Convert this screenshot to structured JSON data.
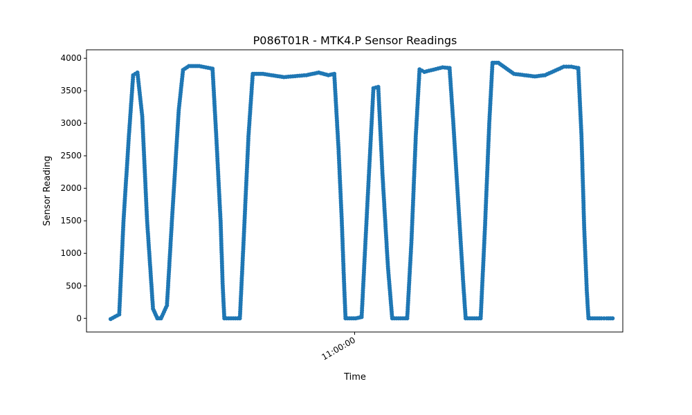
{
  "chart_data": {
    "type": "scatter",
    "title": "P086T01R - MTK4.P Sensor Readings",
    "xlabel": "Time",
    "ylabel": "Sensor Reading",
    "x_ticks": [
      {
        "x": 0.5,
        "label": "11:00:00"
      }
    ],
    "y_ticks": [
      0,
      500,
      1000,
      1500,
      2000,
      2500,
      3000,
      3500,
      4000
    ],
    "xlim": [
      0,
      1
    ],
    "ylim": [
      -210,
      4130
    ],
    "marker_color": "#1f77b4",
    "grid": false,
    "legend": "none",
    "series": [
      {
        "points": [
          [
            0.045,
            -10
          ],
          [
            0.061,
            60
          ],
          [
            0.069,
            1500
          ],
          [
            0.079,
            2800
          ],
          [
            0.087,
            3740
          ],
          [
            0.095,
            3780
          ],
          [
            0.104,
            3100
          ],
          [
            0.113,
            1500
          ],
          [
            0.124,
            150
          ],
          [
            0.132,
            0
          ],
          [
            0.139,
            0
          ],
          [
            0.15,
            200
          ],
          [
            0.16,
            1600
          ],
          [
            0.172,
            3200
          ],
          [
            0.18,
            3820
          ],
          [
            0.191,
            3880
          ],
          [
            0.21,
            3880
          ],
          [
            0.235,
            3840
          ],
          [
            0.242,
            2800
          ],
          [
            0.25,
            1500
          ],
          [
            0.254,
            500
          ],
          [
            0.257,
            0
          ],
          [
            0.286,
            0
          ],
          [
            0.293,
            1200
          ],
          [
            0.302,
            2800
          ],
          [
            0.31,
            3760
          ],
          [
            0.329,
            3760
          ],
          [
            0.368,
            3710
          ],
          [
            0.41,
            3740
          ],
          [
            0.433,
            3780
          ],
          [
            0.451,
            3740
          ],
          [
            0.462,
            3760
          ],
          [
            0.47,
            2600
          ],
          [
            0.476,
            1500
          ],
          [
            0.48,
            600
          ],
          [
            0.483,
            0
          ],
          [
            0.502,
            0
          ],
          [
            0.513,
            20
          ],
          [
            0.524,
            1800
          ],
          [
            0.535,
            3540
          ],
          [
            0.544,
            3560
          ],
          [
            0.552,
            2200
          ],
          [
            0.562,
            800
          ],
          [
            0.57,
            0
          ],
          [
            0.598,
            0
          ],
          [
            0.606,
            1200
          ],
          [
            0.614,
            2800
          ],
          [
            0.621,
            3830
          ],
          [
            0.63,
            3790
          ],
          [
            0.664,
            3860
          ],
          [
            0.677,
            3850
          ],
          [
            0.684,
            3000
          ],
          [
            0.693,
            1800
          ],
          [
            0.702,
            600
          ],
          [
            0.707,
            0
          ],
          [
            0.735,
            0
          ],
          [
            0.743,
            1400
          ],
          [
            0.751,
            3000
          ],
          [
            0.757,
            3930
          ],
          [
            0.768,
            3930
          ],
          [
            0.797,
            3760
          ],
          [
            0.836,
            3720
          ],
          [
            0.855,
            3740
          ],
          [
            0.89,
            3870
          ],
          [
            0.904,
            3870
          ],
          [
            0.917,
            3850
          ],
          [
            0.923,
            2800
          ],
          [
            0.928,
            1400
          ],
          [
            0.933,
            400
          ],
          [
            0.936,
            0
          ],
          [
            0.96,
            0
          ],
          [
            0.97,
            0
          ],
          [
            0.981,
            0
          ]
        ]
      }
    ]
  }
}
